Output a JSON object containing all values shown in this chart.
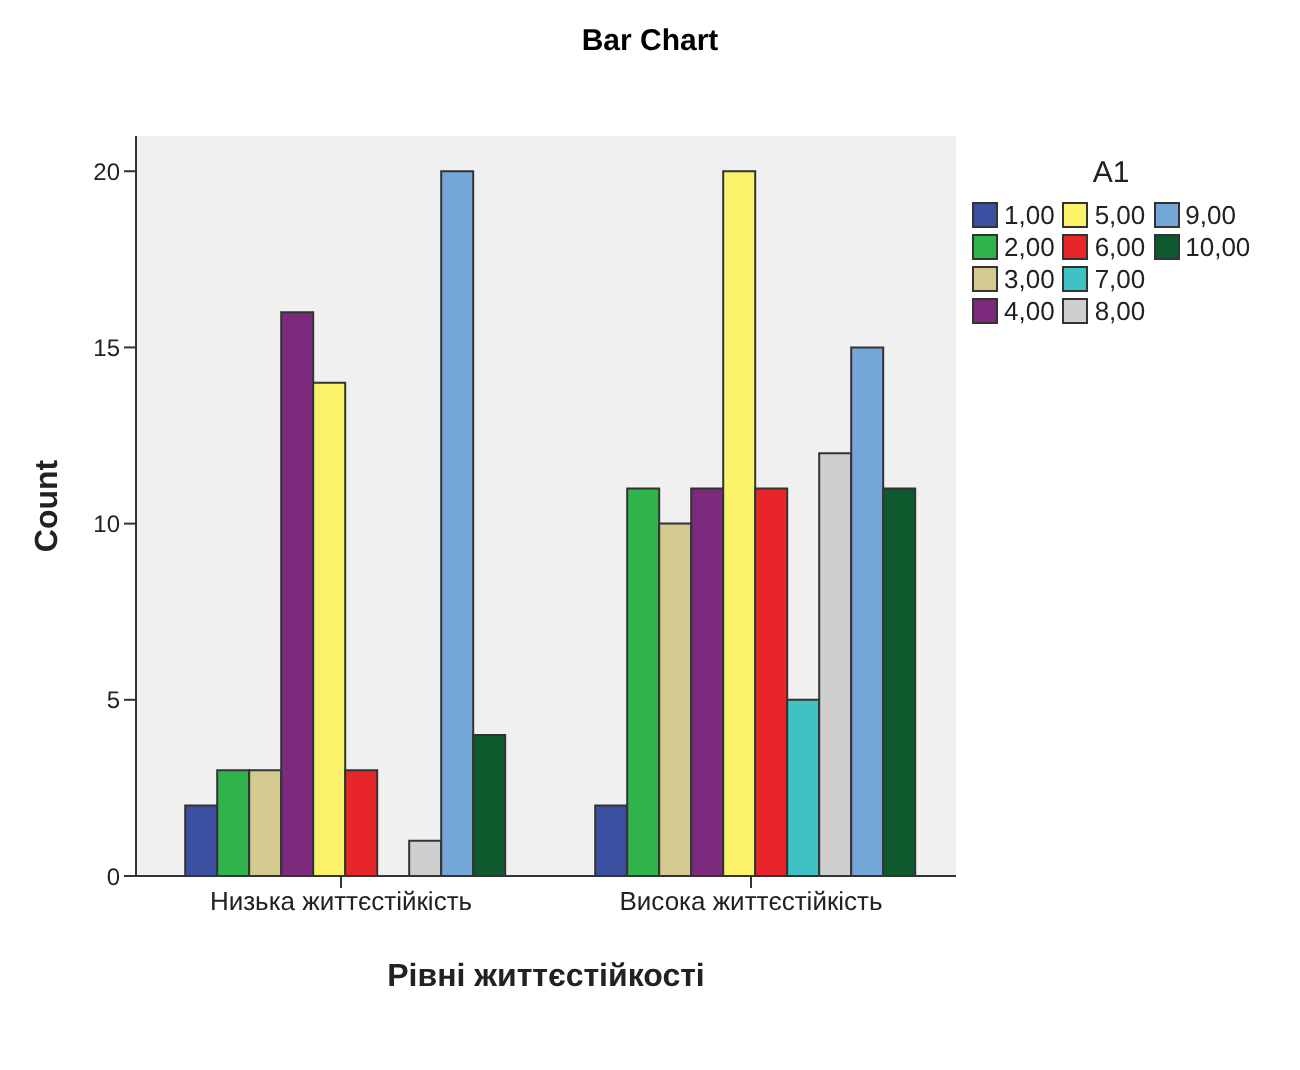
{
  "chart_data": {
    "type": "bar",
    "title": "Bar Chart",
    "xlabel": "Рівні життєстійкості",
    "ylabel": "Count",
    "legend_title": "A1",
    "legend": "top right",
    "categories": [
      "Низька життєстійкість",
      "Висока  життєстійкість"
    ],
    "series": [
      {
        "name": "1,00",
        "color": "#3b4fa0",
        "values": [
          2,
          2
        ]
      },
      {
        "name": "2,00",
        "color": "#2fb34a",
        "values": [
          3,
          11
        ]
      },
      {
        "name": "3,00",
        "color": "#d4c98e",
        "values": [
          3,
          10
        ]
      },
      {
        "name": "4,00",
        "color": "#7b2a7e",
        "values": [
          16,
          11
        ]
      },
      {
        "name": "5,00",
        "color": "#fbf46a",
        "values": [
          14,
          20
        ]
      },
      {
        "name": "6,00",
        "color": "#e8262a",
        "values": [
          3,
          11
        ]
      },
      {
        "name": "7,00",
        "color": "#3fc2c4",
        "values": [
          null,
          5
        ]
      },
      {
        "name": "8,00",
        "color": "#cfcfcf",
        "values": [
          1,
          12
        ]
      },
      {
        "name": "9,00",
        "color": "#74a6d8",
        "values": [
          20,
          15
        ]
      },
      {
        "name": "10,00",
        "color": "#0e5a2e",
        "values": [
          4,
          11
        ]
      }
    ],
    "ylim": [
      0,
      21
    ],
    "yticks": [
      0,
      5,
      10,
      15,
      20
    ],
    "grid": false
  }
}
